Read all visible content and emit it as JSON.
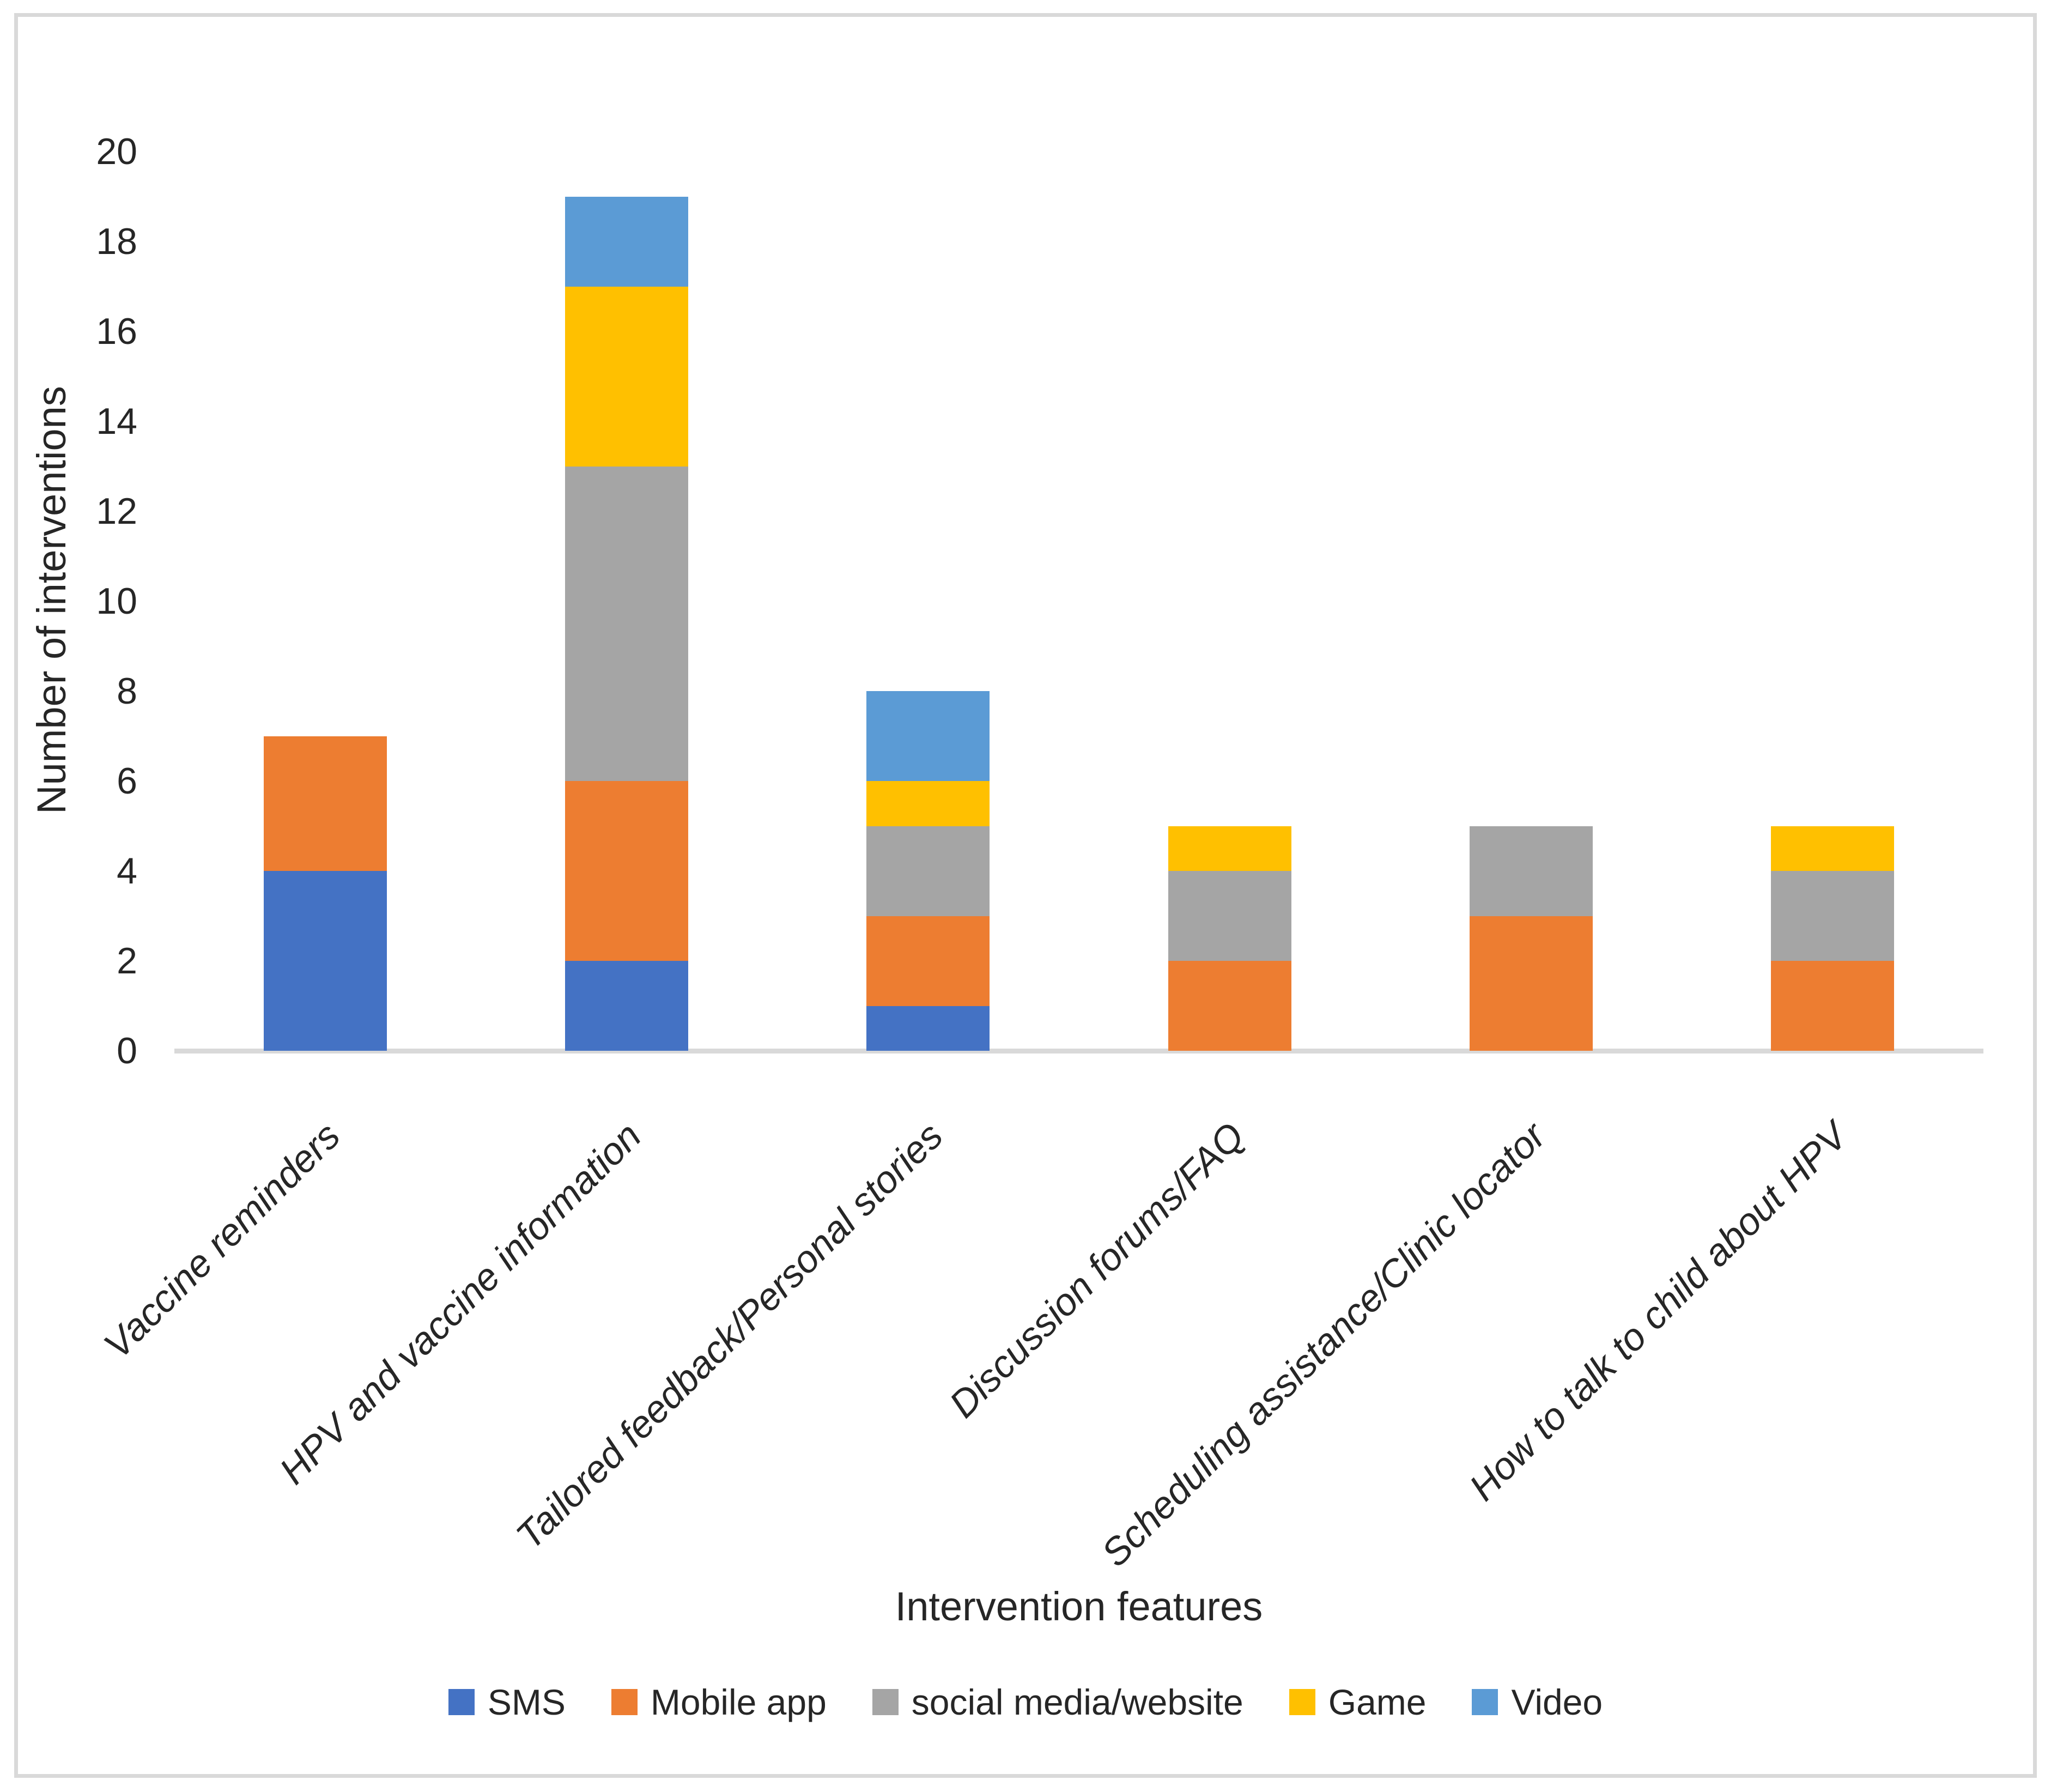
{
  "chart_data": {
    "type": "bar",
    "stacked": true,
    "title": "",
    "categories": [
      "Vaccine reminders",
      "HPV and vaccine information",
      "Tailored feedback/Personal stories",
      "Discussion forums/FAQ",
      "Scheduling assistance/Clinic locator",
      "How to talk to child about HPV"
    ],
    "series": [
      {
        "name": "SMS",
        "color": "#4472C4",
        "values": [
          4,
          2,
          1,
          0,
          0,
          0
        ]
      },
      {
        "name": "Mobile app",
        "color": "#ED7D31",
        "values": [
          3,
          4,
          2,
          2,
          3,
          2
        ]
      },
      {
        "name": "social media/website",
        "color": "#A5A5A5",
        "values": [
          0,
          7,
          2,
          2,
          2,
          2
        ]
      },
      {
        "name": "Game",
        "color": "#FFC000",
        "values": [
          0,
          4,
          1,
          1,
          0,
          1
        ]
      },
      {
        "name": "Video",
        "color": "#5B9BD5",
        "values": [
          0,
          2,
          2,
          0,
          0,
          0
        ]
      }
    ],
    "totals": [
      7,
      19,
      8,
      5,
      5,
      5
    ],
    "xlabel": "Intervention features",
    "ylabel": "Number of interventions",
    "ylim": [
      0,
      20
    ],
    "ytick_step": 2,
    "ytick_labels": [
      "0",
      "2",
      "4",
      "6",
      "8",
      "10",
      "12",
      "14",
      "16",
      "18",
      "20"
    ],
    "grid": false,
    "legend_position": "bottom"
  },
  "colors": {
    "axis_line": "#D9D9D9",
    "frame_border": "#D9D9D9",
    "text": "#262626",
    "background": "#ffffff"
  }
}
